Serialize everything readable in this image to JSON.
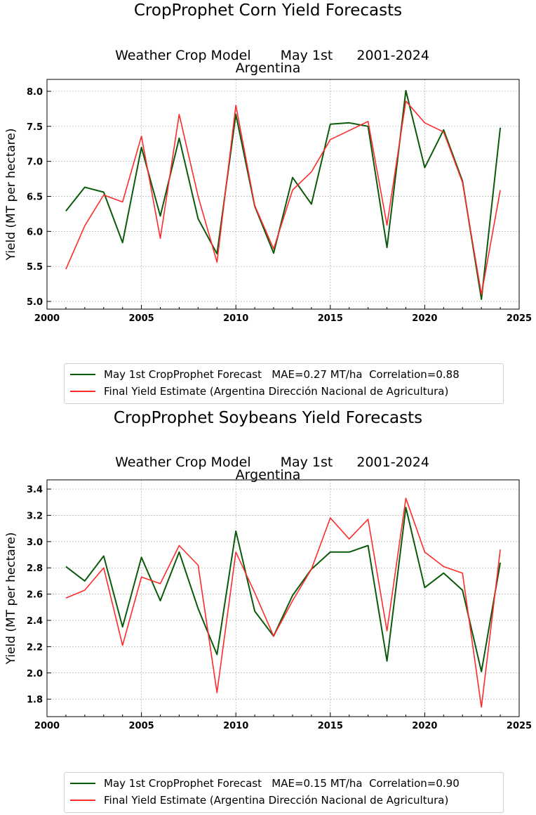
{
  "colors": {
    "forecast": "#0b5a0b",
    "final": "#ff2a2a",
    "grid": "#b0b0b0"
  },
  "chart_data": [
    {
      "type": "line",
      "title": "CropProphet Corn Yield Forecasts",
      "subtitle": [
        "Weather Crop Model",
        "May 1st",
        "2001-2024"
      ],
      "region": "Argentina",
      "ylabel": "Yield (MT per hectare)",
      "xlabel": "",
      "xlim": [
        2000,
        2025
      ],
      "ylim": [
        4.89,
        8.17
      ],
      "xticks": [
        2000,
        2005,
        2010,
        2015,
        2020,
        2025
      ],
      "yticks": [
        5.0,
        5.5,
        6.0,
        6.5,
        7.0,
        7.5,
        8.0
      ],
      "ytick_labels": [
        "5.0",
        "5.5",
        "6.0",
        "6.5",
        "7.0",
        "7.5",
        "8.0"
      ],
      "grid": true,
      "legend_position": "below",
      "x": [
        2001,
        2002,
        2003,
        2004,
        2005,
        2006,
        2007,
        2008,
        2009,
        2010,
        2011,
        2012,
        2013,
        2014,
        2015,
        2016,
        2017,
        2018,
        2019,
        2020,
        2021,
        2022,
        2023,
        2024
      ],
      "series": [
        {
          "name": "May 1st CropProphet Forecast   MAE=0.27 MT/ha  Correlation=0.88",
          "color_key": "forecast",
          "values": [
            6.29,
            6.63,
            6.56,
            5.84,
            7.2,
            6.22,
            7.33,
            6.18,
            5.68,
            7.67,
            6.36,
            5.69,
            6.77,
            6.39,
            7.53,
            7.55,
            7.5,
            5.77,
            8.01,
            6.91,
            7.45,
            6.72,
            5.03,
            7.48
          ]
        },
        {
          "name": "Final Yield Estimate (Argentina Dirección Nacional de Agricultura)",
          "color_key": "final",
          "values": [
            5.46,
            6.08,
            6.52,
            6.42,
            7.36,
            5.9,
            7.67,
            6.5,
            5.56,
            7.8,
            6.37,
            5.75,
            6.59,
            6.85,
            7.31,
            7.44,
            7.57,
            6.09,
            7.86,
            7.55,
            7.42,
            6.7,
            5.1,
            6.59
          ]
        }
      ]
    },
    {
      "type": "line",
      "title": "CropProphet Soybeans Yield Forecasts",
      "subtitle": [
        "Weather Crop Model",
        "May 1st",
        "2001-2024"
      ],
      "region": "Argentina",
      "ylabel": "Yield (MT per hectare)",
      "xlabel": "",
      "xlim": [
        2000,
        2025
      ],
      "ylim": [
        1.667,
        3.47
      ],
      "xticks": [
        2000,
        2005,
        2010,
        2015,
        2020,
        2025
      ],
      "yticks": [
        1.8,
        2.0,
        2.2,
        2.4,
        2.6,
        2.8,
        3.0,
        3.2,
        3.4
      ],
      "ytick_labels": [
        "1.8",
        "2.0",
        "2.2",
        "2.4",
        "2.6",
        "2.8",
        "3.0",
        "3.2",
        "3.4"
      ],
      "grid": true,
      "legend_position": "below",
      "x": [
        2001,
        2002,
        2003,
        2004,
        2005,
        2006,
        2007,
        2008,
        2009,
        2010,
        2011,
        2012,
        2013,
        2014,
        2015,
        2016,
        2017,
        2018,
        2019,
        2020,
        2021,
        2022,
        2023,
        2024
      ],
      "series": [
        {
          "name": "May 1st CropProphet Forecast   MAE=0.15 MT/ha  Correlation=0.90",
          "color_key": "forecast",
          "values": [
            2.81,
            2.7,
            2.89,
            2.35,
            2.88,
            2.55,
            2.92,
            2.49,
            2.14,
            3.08,
            2.47,
            2.28,
            2.59,
            2.79,
            2.92,
            2.92,
            2.97,
            2.09,
            3.26,
            2.65,
            2.76,
            2.63,
            2.01,
            2.84
          ]
        },
        {
          "name": "Final Yield Estimate (Argentina Dirección Nacional de Agricultura)",
          "color_key": "final",
          "values": [
            2.57,
            2.63,
            2.8,
            2.21,
            2.73,
            2.68,
            2.97,
            2.82,
            1.85,
            2.92,
            2.61,
            2.28,
            2.55,
            2.79,
            3.18,
            3.02,
            3.17,
            2.32,
            3.33,
            2.92,
            2.81,
            2.76,
            1.74,
            2.94
          ]
        }
      ]
    }
  ]
}
